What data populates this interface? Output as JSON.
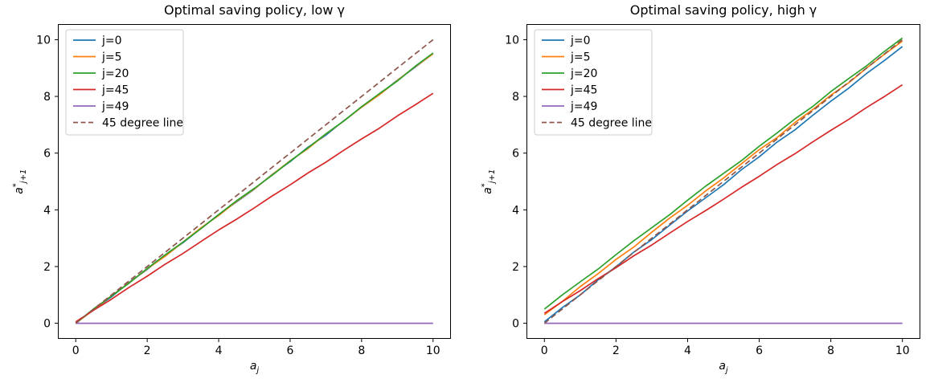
{
  "figure": {
    "background": "#ffffff",
    "axis_color": "#000000",
    "legend_border_color": "#cccccc"
  },
  "chart_data": [
    {
      "type": "line",
      "title": "Optimal saving policy, low γ",
      "xlabel": {
        "base": "a",
        "sub": "j"
      },
      "ylabel": {
        "base": "a",
        "sup": "*",
        "sub": "j+1"
      },
      "xlim": [
        -0.5,
        10.5
      ],
      "ylim": [
        -0.55,
        10.55
      ],
      "xticks": [
        0,
        2,
        4,
        6,
        8,
        10
      ],
      "yticks": [
        0,
        2,
        4,
        6,
        8,
        10
      ],
      "grid": false,
      "legend_position": "upper-left",
      "x": [
        0,
        0.5,
        1,
        1.5,
        2,
        2.5,
        3,
        3.5,
        4,
        4.5,
        5,
        5.5,
        6,
        6.5,
        7,
        7.5,
        8,
        8.5,
        9,
        9.5,
        10
      ],
      "series": [
        {
          "name": "j=0",
          "color": "#1f77b4",
          "style": "solid",
          "y": [
            0,
            0.49,
            0.93,
            1.45,
            1.9,
            2.41,
            2.84,
            3.34,
            3.83,
            4.28,
            4.73,
            5.25,
            5.7,
            6.21,
            6.63,
            7.14,
            7.62,
            8.07,
            8.57,
            9.03,
            9.51
          ]
        },
        {
          "name": "j=5",
          "color": "#ff7f0e",
          "style": "solid",
          "y": [
            0,
            0.47,
            0.97,
            1.43,
            1.92,
            2.36,
            2.86,
            3.36,
            3.8,
            4.3,
            4.74,
            5.24,
            5.73,
            6.16,
            6.67,
            7.13,
            7.62,
            8.06,
            8.56,
            9.05,
            9.5
          ]
        },
        {
          "name": "j=20",
          "color": "#2ca02c",
          "style": "solid",
          "y": [
            0,
            0.51,
            0.96,
            1.42,
            1.93,
            2.41,
            2.86,
            3.33,
            3.83,
            4.32,
            4.76,
            5.22,
            5.72,
            6.19,
            6.68,
            7.13,
            7.64,
            8.1,
            8.54,
            9.06,
            9.53
          ]
        },
        {
          "name": "j=45",
          "color": "#d62728",
          "style": "solid",
          "y": [
            0.05,
            0.46,
            0.85,
            1.27,
            1.66,
            2.08,
            2.46,
            2.88,
            3.29,
            3.67,
            4.07,
            4.49,
            4.88,
            5.3,
            5.68,
            6.1,
            6.5,
            6.88,
            7.31,
            7.7,
            8.11
          ]
        },
        {
          "name": "j=49",
          "color": "#9467bd",
          "style": "solid",
          "y": [
            0,
            0,
            0,
            0,
            0,
            0,
            0,
            0,
            0,
            0,
            0,
            0,
            0,
            0,
            0,
            0,
            0,
            0,
            0,
            0,
            0
          ]
        },
        {
          "name": "45 degree line",
          "color": "#8c564b",
          "style": "dashed",
          "y": [
            0,
            0.5,
            1,
            1.5,
            2,
            2.5,
            3,
            3.5,
            4,
            4.5,
            5,
            5.5,
            6,
            6.5,
            7,
            7.5,
            8,
            8.5,
            9,
            9.5,
            10
          ]
        }
      ]
    },
    {
      "type": "line",
      "title": "Optimal saving policy, high γ",
      "xlabel": {
        "base": "a",
        "sub": "j"
      },
      "ylabel": {
        "base": "a",
        "sup": "*",
        "sub": "j+1"
      },
      "xlim": [
        -0.5,
        10.5
      ],
      "ylim": [
        -0.55,
        10.55
      ],
      "xticks": [
        0,
        2,
        4,
        6,
        8,
        10
      ],
      "yticks": [
        0,
        2,
        4,
        6,
        8,
        10
      ],
      "grid": false,
      "legend_position": "upper-left",
      "x": [
        0,
        0.5,
        1,
        1.5,
        2,
        2.5,
        3,
        3.5,
        4,
        4.5,
        5,
        5.5,
        6,
        6.5,
        7,
        7.5,
        8,
        8.5,
        9,
        9.5,
        10
      ],
      "series": [
        {
          "name": "j=0",
          "color": "#1f77b4",
          "style": "solid",
          "y": [
            0.05,
            0.55,
            1.0,
            1.53,
            1.99,
            2.51,
            2.95,
            3.46,
            3.96,
            4.42,
            4.88,
            5.41,
            5.87,
            6.39,
            6.82,
            7.34,
            7.83,
            8.29,
            8.81,
            9.27,
            9.76
          ]
        },
        {
          "name": "j=5",
          "color": "#ff7f0e",
          "style": "solid",
          "y": [
            0.3,
            0.77,
            1.29,
            1.75,
            2.25,
            2.69,
            3.21,
            3.71,
            4.16,
            4.66,
            5.12,
            5.62,
            6.12,
            6.55,
            7.08,
            7.54,
            8.04,
            8.48,
            9.0,
            9.49,
            9.95
          ]
        },
        {
          "name": "j=20",
          "color": "#2ca02c",
          "style": "solid",
          "y": [
            0.5,
            1.0,
            1.46,
            1.91,
            2.42,
            2.91,
            3.37,
            3.83,
            4.34,
            4.83,
            5.28,
            5.73,
            6.24,
            6.71,
            7.21,
            7.65,
            8.17,
            8.63,
            9.08,
            9.59,
            10.06
          ]
        },
        {
          "name": "j=45",
          "color": "#d62728",
          "style": "solid",
          "y": [
            0.35,
            0.76,
            1.15,
            1.57,
            1.96,
            2.38,
            2.76,
            3.18,
            3.59,
            3.97,
            4.37,
            4.79,
            5.18,
            5.6,
            5.98,
            6.4,
            6.8,
            7.19,
            7.61,
            8.0,
            8.41
          ]
        },
        {
          "name": "j=49",
          "color": "#9467bd",
          "style": "solid",
          "y": [
            0,
            0,
            0,
            0,
            0,
            0,
            0,
            0,
            0,
            0,
            0,
            0,
            0,
            0,
            0,
            0,
            0,
            0,
            0,
            0,
            0
          ]
        },
        {
          "name": "45 degree line",
          "color": "#8c564b",
          "style": "dashed",
          "y": [
            0,
            0.5,
            1,
            1.5,
            2,
            2.5,
            3,
            3.5,
            4,
            4.5,
            5,
            5.5,
            6,
            6.5,
            7,
            7.5,
            8,
            8.5,
            9,
            9.5,
            10
          ]
        }
      ]
    }
  ]
}
